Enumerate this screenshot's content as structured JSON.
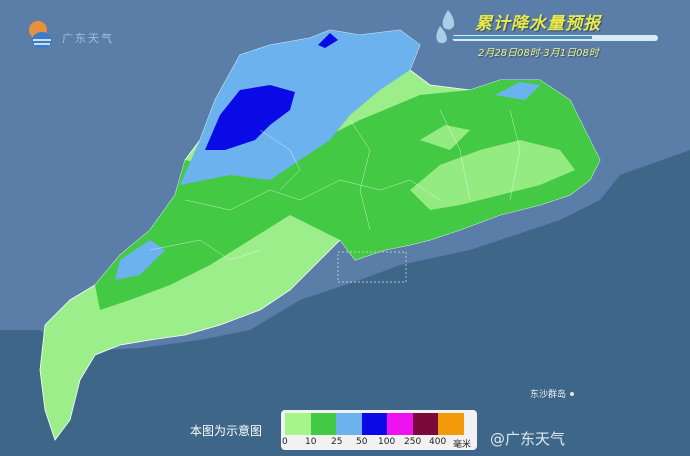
{
  "header": {
    "title": "累计降水量预报",
    "period": "2月28日08时-3月1日08时"
  },
  "logo": {
    "text": "广东天气"
  },
  "note": "本图为示意图",
  "island_label": "东沙群岛",
  "watermark": "@广东天气",
  "legend": {
    "colors": [
      "#a6f58a",
      "#44c944",
      "#6cb2ee",
      "#0a0ae6",
      "#ee12ee",
      "#7a0a3c",
      "#f29a0a"
    ],
    "labels": [
      "0",
      "10",
      "25",
      "50",
      "100",
      "250",
      "400"
    ],
    "unit": "毫米"
  },
  "colors": {
    "land": "#5e80a8",
    "sea": "#3d6689"
  }
}
